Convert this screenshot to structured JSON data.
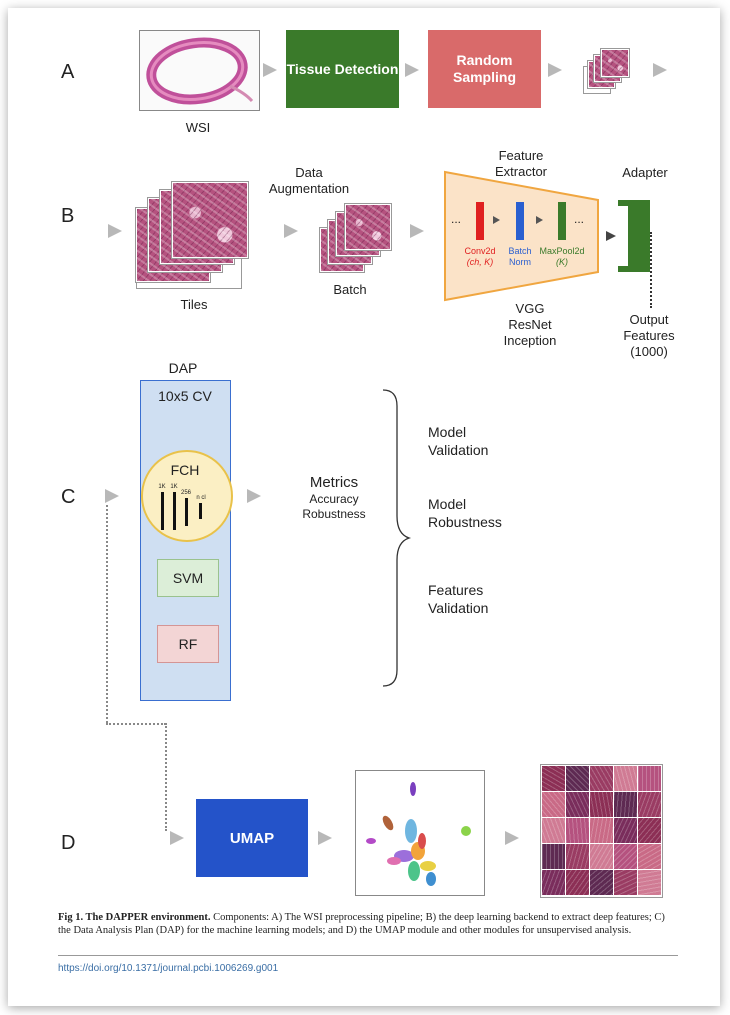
{
  "rows": {
    "a": "A",
    "b": "B",
    "c": "C",
    "d": "D"
  },
  "panel_a": {
    "wsi_label": "WSI",
    "tissue_detection": "Tissue Detection",
    "random_sampling": "Random Sampling",
    "colors": {
      "tissue_detection": "#3a7a2a",
      "random_sampling": "#d96a6a"
    }
  },
  "panel_b": {
    "tiles_label": "Tiles",
    "data_augmentation": "Data Augmentation",
    "batch_label": "Batch",
    "feature_extractor": "Feature Extractor",
    "adapter": "Adapter",
    "dots": "...",
    "conv2d": "Conv2d",
    "conv2d_params": "(ch, K)",
    "batch_norm": "Batch Norm",
    "maxpool2d": "MaxPool2d",
    "maxpool2d_params": "(K)",
    "models": [
      "VGG",
      "ResNet",
      "Inception"
    ],
    "output_features": "Output Features (1000)",
    "colors": {
      "conv": "#e02020",
      "bn": "#2a5fd0",
      "pool": "#3a7a2a",
      "extractor_fill": "#fbe3c8",
      "extractor_border": "#f0a640"
    }
  },
  "panel_c": {
    "dap": "DAP",
    "cv": "10x5 CV",
    "fch": "FCH",
    "fch_ticks": [
      "1K",
      "1K",
      "256",
      "n cl"
    ],
    "svm": "SVM",
    "rf": "RF",
    "metrics_title": "Metrics",
    "metrics_items": [
      "Accuracy",
      "Robustness"
    ],
    "outcomes": [
      "Model Validation",
      "Model Robustness",
      "Features Validation"
    ]
  },
  "panel_d": {
    "umap": "UMAP",
    "colors": {
      "umap": "#2453c9"
    }
  },
  "caption": {
    "bold": "Fig 1. The DAPPER environment.",
    "text": " Components: A) The WSI preprocessing pipeline; B) the deep learning backend to extract deep features; C) the Data Analysis Plan (DAP) for the machine learning models; and D) the UMAP module and other modules for unsupervised analysis."
  },
  "doi": "https://doi.org/10.1371/journal.pcbi.1006269.g001"
}
